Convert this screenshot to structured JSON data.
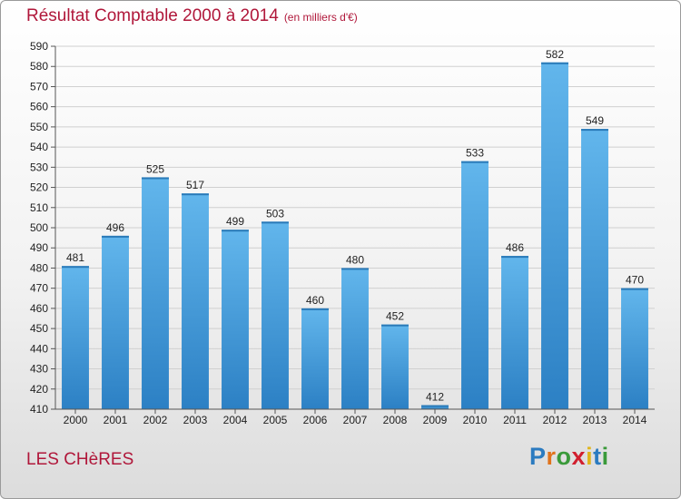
{
  "header": {
    "title": "Résultat Comptable 2000 à 2014",
    "subtitle": "(en milliers d'€)"
  },
  "footer": {
    "place": "LES CHèRES",
    "brand": "Proxiti"
  },
  "colors": {
    "title": "#b0173a",
    "bar_top": "#62b6ec",
    "bar_bottom": "#2c80c4",
    "grid": "#d0d0d0"
  },
  "chart_data": {
    "type": "bar",
    "title": "Résultat Comptable 2000 à 2014",
    "subtitle": "(en milliers d'€)",
    "categories": [
      "2000",
      "2001",
      "2002",
      "2003",
      "2004",
      "2005",
      "2006",
      "2007",
      "2008",
      "2009",
      "2010",
      "2011",
      "2012",
      "2013",
      "2014"
    ],
    "values": [
      481,
      496,
      525,
      517,
      499,
      503,
      460,
      480,
      452,
      412,
      533,
      486,
      582,
      549,
      470
    ],
    "ylim": [
      410,
      590
    ],
    "ytick_step": 10,
    "grid": true,
    "data_labels": true
  }
}
